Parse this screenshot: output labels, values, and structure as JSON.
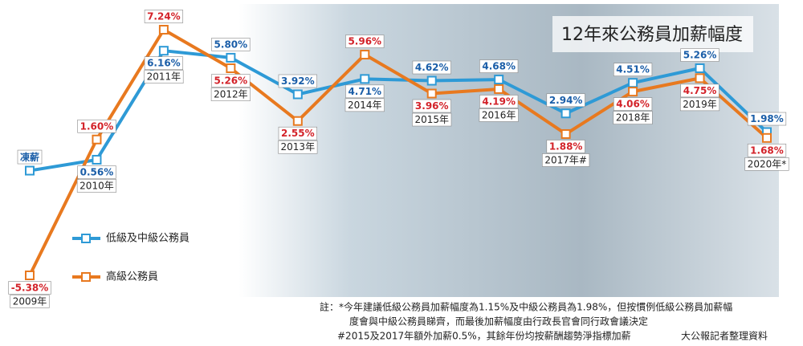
{
  "chart_data": {
    "type": "line",
    "title": "12年來公務員加薪幅度",
    "categories": [
      "2009年",
      "2010年",
      "2011年",
      "2012年",
      "2013年",
      "2014年",
      "2015年",
      "2016年",
      "2017年#",
      "2018年",
      "2019年",
      "2020年*"
    ],
    "series": [
      {
        "name": "低級及中級公務員",
        "color": "#2e9ad6",
        "label_color": "#1b5ea8",
        "values": [
          0,
          0.56,
          6.16,
          5.8,
          3.92,
          4.71,
          4.62,
          4.68,
          2.94,
          4.51,
          5.26,
          1.98
        ],
        "value_labels": [
          "凍薪",
          "0.56%",
          "6.16%",
          "5.80%",
          "3.92%",
          "4.71%",
          "4.62%",
          "4.68%",
          "2.94%",
          "4.51%",
          "5.26%",
          "1.98%"
        ]
      },
      {
        "name": "高級公務員",
        "color": "#e8791f",
        "label_color": "#d3232a",
        "values": [
          -5.38,
          1.6,
          7.24,
          5.26,
          2.55,
          5.96,
          3.96,
          4.19,
          1.88,
          4.06,
          4.75,
          1.68
        ],
        "value_labels": [
          "-5.38%",
          "1.60%",
          "7.24%",
          "5.26%",
          "2.55%",
          "5.96%",
          "3.96%",
          "4.19%",
          "1.88%",
          "4.06%",
          "4.75%",
          "1.68%"
        ]
      }
    ],
    "notes": [
      "註：*今年建議低級公務員加薪幅度為1.15%及中級公務員為1.98%，但按慣例低級公務員加薪幅",
      "度會與中級公務員睇齊，而最後加薪幅度由行政長官會同行政會議決定",
      "#2015及2017年額外加薪0.5%，其餘年份均按薪酬趨勢淨指標加薪"
    ],
    "source": "大公報記者整理資料"
  }
}
